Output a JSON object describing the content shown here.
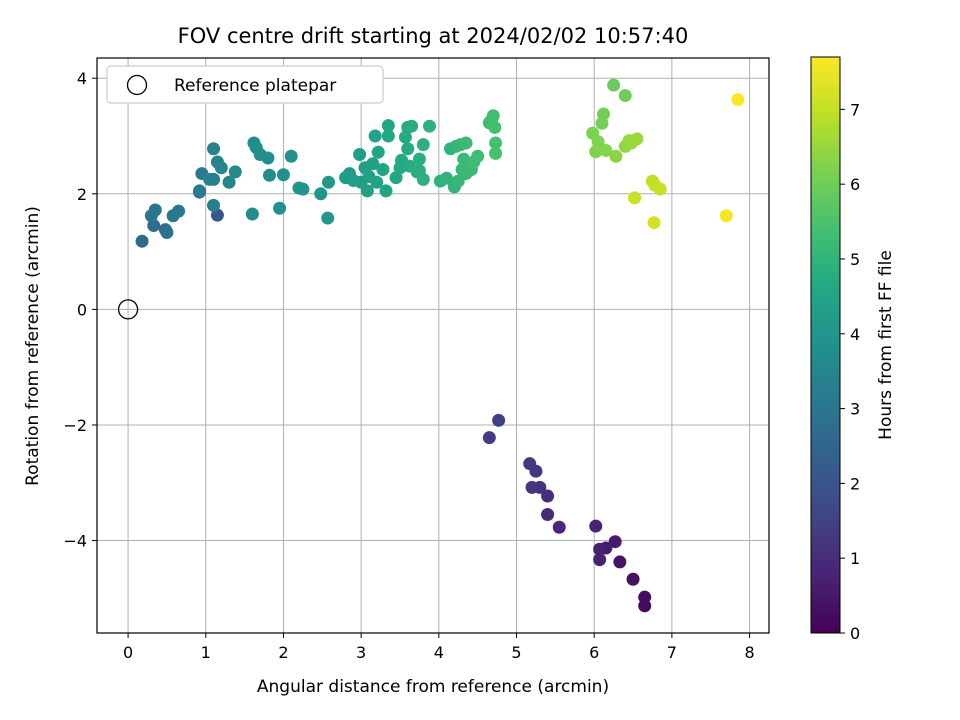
{
  "chart_data": {
    "type": "scatter",
    "title": "FOV centre drift starting at 2024/02/02 10:57:40",
    "xlabel": "Angular distance from reference (arcmin)",
    "ylabel": "Rotation from reference (arcmin)",
    "xlim": [
      -0.4,
      8.25
    ],
    "ylim": [
      -5.6,
      4.35
    ],
    "xticks": [
      0,
      1,
      2,
      3,
      4,
      5,
      6,
      7,
      8
    ],
    "yticks": [
      -4,
      -2,
      0,
      2,
      4
    ],
    "ytick_labels": [
      "−4",
      "−2",
      "0",
      "2",
      "4"
    ],
    "grid": true,
    "legend": {
      "position": "top-left",
      "entries": [
        "Reference platepar"
      ]
    },
    "reference_point": {
      "x": 0,
      "y": 0
    },
    "colorbar": {
      "label": "Hours from first FF file",
      "range": [
        0,
        7.7
      ],
      "ticks": [
        0,
        1,
        2,
        3,
        4,
        5,
        6,
        7
      ],
      "colormap": "viridis"
    },
    "series": [
      {
        "x": [
          6.65,
          6.65,
          6.5,
          6.33,
          6.27,
          6.15,
          6.07,
          6.07,
          6.02,
          5.55,
          5.4,
          5.4,
          5.3,
          5.2,
          5.25,
          5.17,
          4.65,
          4.77
        ],
        "y": [
          -5.13,
          -4.98,
          -4.67,
          -4.37,
          -4.02,
          -4.13,
          -4.15,
          -4.33,
          -3.75,
          -3.77,
          -3.55,
          -3.23,
          -3.08,
          -3.08,
          -2.8,
          -2.67,
          -2.22,
          -1.92
        ],
        "color_value": [
          0.2,
          0.25,
          0.35,
          0.45,
          0.55,
          0.6,
          0.65,
          0.7,
          0.75,
          0.85,
          0.95,
          1.0,
          1.1,
          1.15,
          1.2,
          1.25,
          1.35,
          1.4
        ]
      },
      {
        "x": [
          1.15,
          0.92,
          0.18,
          0.33,
          0.48,
          0.5,
          0.35,
          0.3,
          0.58,
          0.65,
          0.95,
          0.92,
          1.1,
          1.1,
          1.05,
          1.1,
          1.15,
          1.2,
          1.3,
          1.38,
          1.6,
          1.62,
          1.65,
          1.7,
          1.8,
          1.82,
          1.95,
          2.0,
          2.1,
          2.2,
          2.25,
          2.48,
          2.57,
          2.58
        ],
        "y": [
          1.63,
          2.03,
          1.18,
          1.45,
          1.38,
          1.33,
          1.72,
          1.62,
          1.62,
          1.7,
          2.35,
          2.05,
          2.25,
          1.8,
          2.25,
          2.78,
          2.55,
          2.45,
          2.2,
          2.38,
          1.65,
          2.88,
          2.8,
          2.68,
          2.62,
          2.32,
          1.75,
          2.33,
          2.65,
          2.1,
          2.08,
          2.0,
          1.58,
          2.2
        ],
        "color_value": [
          2.1,
          2.3,
          2.6,
          2.7,
          2.8,
          2.9,
          2.95,
          3.0,
          3.05,
          3.1,
          3.15,
          3.2,
          3.25,
          3.3,
          3.35,
          3.4,
          3.45,
          3.5,
          3.55,
          3.6,
          3.65,
          3.7,
          3.72,
          3.75,
          3.78,
          3.8,
          3.85,
          3.9,
          3.92,
          3.95,
          3.98,
          4.0,
          4.05,
          4.1
        ]
      },
      {
        "x": [
          2.8,
          2.85,
          2.9,
          2.98,
          3.0,
          3.05,
          3.08,
          3.1,
          3.15,
          3.18,
          3.2,
          3.22,
          3.28,
          3.32,
          3.35,
          3.35,
          3.45,
          3.5,
          3.52,
          3.57,
          3.6,
          3.6,
          3.62,
          3.65,
          3.72,
          3.75,
          3.75,
          3.8,
          3.8,
          3.88,
          4.02,
          4.1,
          4.15,
          4.2,
          4.22,
          4.25,
          4.28,
          4.3,
          4.32,
          4.35,
          4.35,
          4.42,
          4.45,
          4.5,
          4.65,
          4.68,
          4.7,
          4.72,
          4.73,
          4.73
        ],
        "y": [
          2.28,
          2.35,
          2.23,
          2.68,
          2.2,
          2.45,
          2.05,
          2.3,
          2.52,
          3.0,
          2.2,
          2.72,
          2.42,
          2.05,
          3.18,
          3.0,
          2.28,
          2.45,
          2.58,
          2.98,
          3.15,
          2.78,
          2.48,
          3.17,
          2.38,
          2.4,
          2.6,
          2.25,
          2.85,
          3.17,
          2.22,
          2.27,
          2.78,
          2.12,
          2.82,
          2.22,
          2.85,
          2.42,
          2.6,
          2.35,
          2.88,
          2.42,
          2.55,
          2.65,
          3.23,
          3.28,
          3.35,
          3.15,
          2.88,
          2.7
        ],
        "color_value": [
          4.15,
          4.2,
          4.25,
          4.28,
          4.3,
          4.32,
          4.35,
          4.38,
          4.4,
          4.42,
          4.45,
          4.48,
          4.5,
          4.52,
          4.55,
          4.58,
          4.6,
          4.62,
          4.65,
          4.68,
          4.7,
          4.72,
          4.75,
          4.78,
          4.8,
          4.82,
          4.85,
          4.88,
          4.9,
          4.92,
          4.95,
          4.98,
          5.0,
          5.02,
          5.05,
          5.08,
          5.1,
          5.12,
          5.15,
          5.18,
          5.2,
          5.22,
          5.25,
          5.28,
          5.3,
          5.32,
          5.35,
          5.38,
          5.4,
          5.42
        ]
      },
      {
        "x": [
          6.25,
          6.4,
          6.12,
          6.1,
          5.98,
          6.05,
          6.02,
          6.15,
          6.28,
          6.4,
          6.45,
          6.48,
          6.55,
          6.75,
          6.78,
          6.85,
          6.52,
          6.77,
          7.7,
          7.85
        ],
        "y": [
          3.88,
          3.7,
          3.38,
          3.22,
          3.05,
          2.9,
          2.73,
          2.75,
          2.65,
          2.82,
          2.92,
          2.88,
          2.95,
          2.22,
          2.15,
          2.08,
          1.93,
          1.5,
          1.62,
          3.63
        ],
        "color_value": [
          5.9,
          6.0,
          6.05,
          6.1,
          6.15,
          6.2,
          6.25,
          6.3,
          6.35,
          6.4,
          6.45,
          6.5,
          6.55,
          6.95,
          7.0,
          7.05,
          7.1,
          7.2,
          7.6,
          7.7
        ]
      }
    ]
  }
}
